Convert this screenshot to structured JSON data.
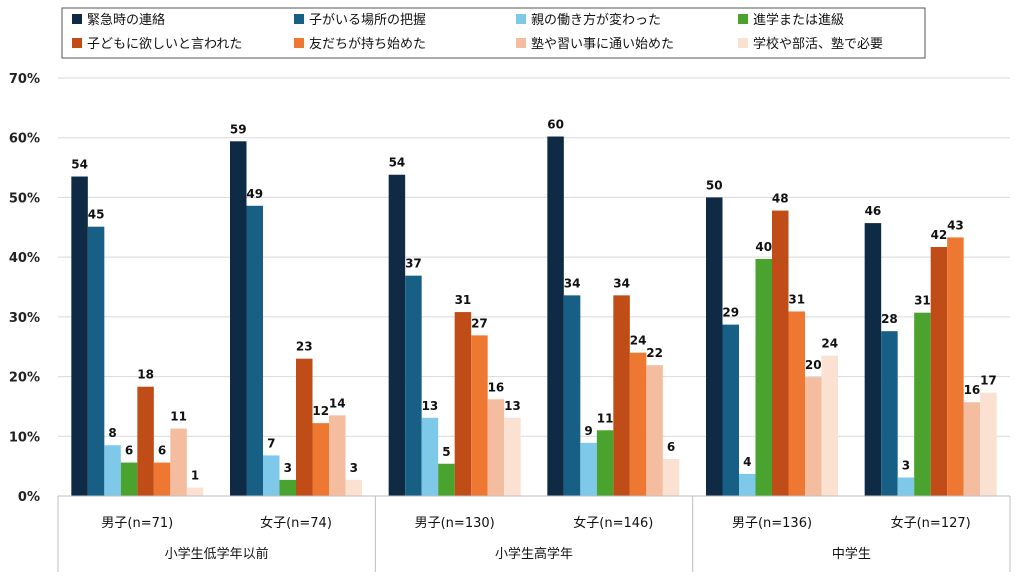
{
  "chart_data": {
    "type": "bar",
    "ylim": [
      0,
      70
    ],
    "yticks": [
      "0%",
      "10%",
      "20%",
      "30%",
      "40%",
      "50%",
      "60%",
      "70%"
    ],
    "grid": true,
    "legend_position": "top",
    "categories": [
      "男子(n=71)",
      "女子(n=74)",
      "男子(n=130)",
      "女子(n=146)",
      "男子(n=136)",
      "女子(n=127)"
    ],
    "groups": [
      {
        "label": "小学生低学年以前",
        "span": 2
      },
      {
        "label": "小学生高学年",
        "span": 2
      },
      {
        "label": "中学生",
        "span": 2
      }
    ],
    "series": [
      {
        "name": "緊急時の連絡",
        "color": "#0f2a44",
        "values": [
          53.5,
          59.4,
          53.8,
          60.2,
          50.0,
          45.7
        ],
        "labels": [
          "54",
          "59",
          "54",
          "60",
          "50",
          "46"
        ]
      },
      {
        "name": "子がいる場所の把握",
        "color": "#185f86",
        "values": [
          45.1,
          48.6,
          36.9,
          33.6,
          28.7,
          27.6
        ],
        "labels": [
          "45",
          "49",
          "37",
          "34",
          "29",
          "28"
        ]
      },
      {
        "name": "親の働き方が変わった",
        "color": "#7ec8ea",
        "values": [
          8.5,
          6.8,
          13.1,
          8.9,
          3.7,
          3.1
        ],
        "labels": [
          "8",
          "7",
          "13",
          "9",
          "4",
          "3"
        ]
      },
      {
        "name": "進学または進級",
        "color": "#4aa32e",
        "values": [
          5.6,
          2.7,
          5.4,
          11.0,
          39.7,
          30.7
        ],
        "labels": [
          "6",
          "3",
          "5",
          "11",
          "40",
          "31"
        ]
      },
      {
        "name": "子どもに欲しいと言われた",
        "color": "#c04d17",
        "values": [
          18.3,
          23.0,
          30.8,
          33.6,
          47.8,
          41.7
        ],
        "labels": [
          "18",
          "23",
          "31",
          "34",
          "48",
          "42"
        ]
      },
      {
        "name": "友だちが持ち始めた",
        "color": "#ee7732",
        "values": [
          5.6,
          12.2,
          26.9,
          24.0,
          30.9,
          43.3
        ],
        "labels": [
          "6",
          "12",
          "27",
          "24",
          "31",
          "43"
        ]
      },
      {
        "name": "塾や習い事に通い始めた",
        "color": "#f5bda0",
        "values": [
          11.3,
          13.5,
          16.2,
          21.9,
          19.9,
          15.7
        ],
        "labels": [
          "11",
          "14",
          "16",
          "22",
          "20",
          "16"
        ]
      },
      {
        "name": "学校や部活、塾で必要",
        "color": "#fbe1d2",
        "values": [
          1.4,
          2.7,
          13.1,
          6.2,
          23.5,
          17.3
        ],
        "labels": [
          "1",
          "3",
          "13",
          "6",
          "24",
          "17"
        ]
      }
    ]
  }
}
